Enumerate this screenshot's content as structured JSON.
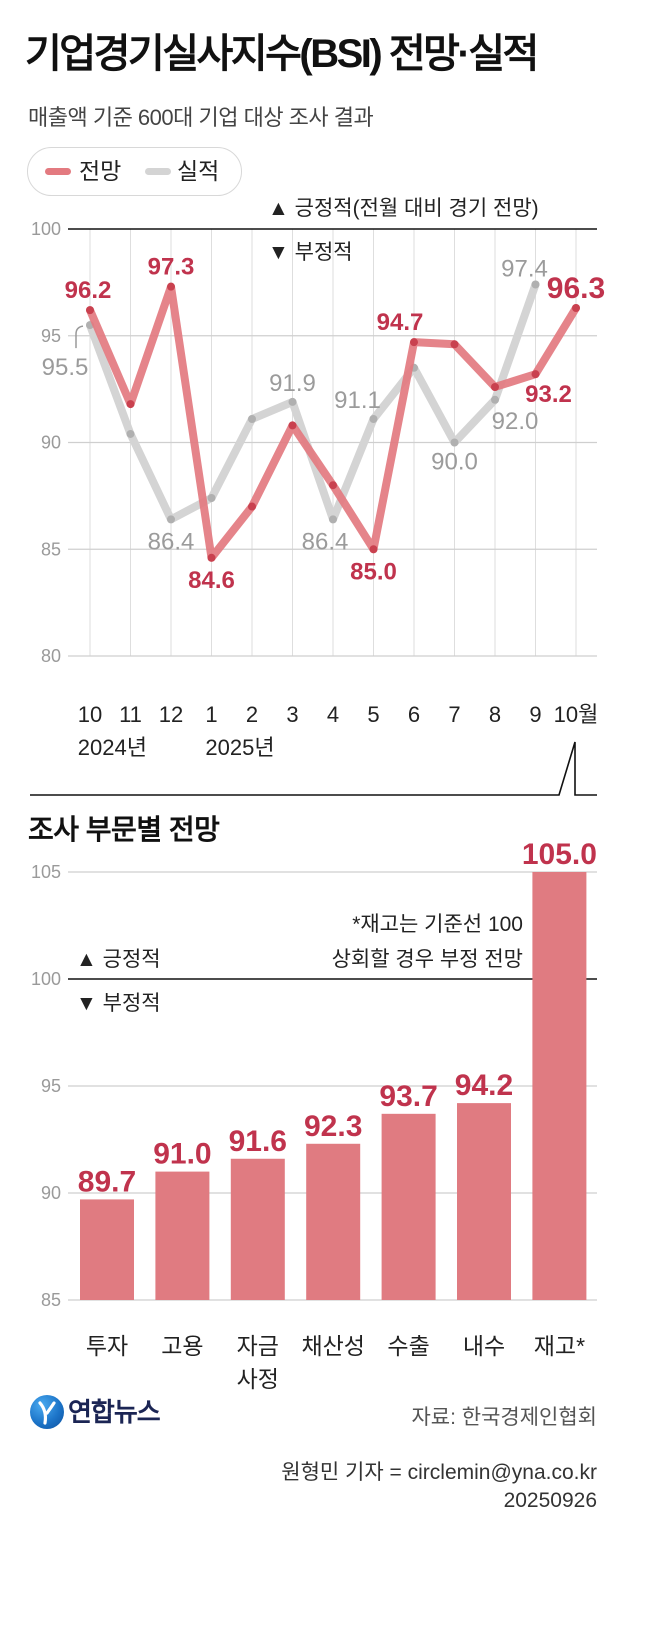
{
  "header": {
    "title": "기업경기실사지수(BSI) 전망·실적",
    "subtitle": "매출액 기준 600대 기업 대상 조사 결과"
  },
  "colors": {
    "forecast": "#e37a80",
    "forecast_point": "#c9414f",
    "actual": "#d4d4d4",
    "actual_point": "#b0b0b0",
    "label_red": "#c0334d",
    "label_gray": "#9b9b9b",
    "bar": "#e07b81",
    "baseline": "#111111",
    "grid": "#cfcfcf"
  },
  "chart_data": [
    {
      "type": "line",
      "x": [
        "10",
        "11",
        "12",
        "1",
        "2",
        "3",
        "4",
        "5",
        "6",
        "7",
        "8",
        "9",
        "10월"
      ],
      "x_groups": [
        {
          "label": "2024년",
          "start_index": 0
        },
        {
          "label": "2025년",
          "start_index": 3
        }
      ],
      "ylim": [
        80,
        100
      ],
      "yticks": [
        100,
        95,
        90,
        85,
        80
      ],
      "baseline": 100,
      "grid": true,
      "legend": "top-left",
      "annotations": {
        "positive": "▲ 긍정적(전월 대비 경기 전망)",
        "negative": "▼ 부정적"
      },
      "series": [
        {
          "name": "전망",
          "values": [
            96.2,
            91.8,
            97.3,
            84.6,
            87.0,
            90.8,
            88.0,
            85.0,
            94.7,
            94.6,
            92.6,
            93.2,
            96.3
          ],
          "labels": [
            "96.2",
            null,
            "97.3",
            "84.6",
            null,
            null,
            null,
            "85.0",
            "94.7",
            null,
            null,
            "93.2",
            "96.3"
          ]
        },
        {
          "name": "실적",
          "values": [
            95.5,
            90.4,
            86.4,
            87.4,
            91.1,
            91.9,
            86.4,
            91.1,
            93.5,
            90.0,
            92.0,
            97.4,
            null
          ],
          "labels": [
            "95.5",
            null,
            "86.4",
            null,
            null,
            "91.9",
            "86.4",
            "91.1",
            null,
            "90.0",
            "92.0",
            "97.4",
            null
          ]
        }
      ]
    },
    {
      "type": "bar",
      "title": "조사 부문별 전망",
      "categories": [
        "투자",
        "고용",
        "자금 사정",
        "채산성",
        "수출",
        "내수",
        "재고*"
      ],
      "values": [
        89.7,
        91.0,
        91.6,
        92.3,
        93.7,
        94.2,
        105.0
      ],
      "value_labels": [
        "89.7",
        "91.0",
        "91.6",
        "92.3",
        "93.7",
        "94.2",
        "105.0"
      ],
      "ylim": [
        85,
        105
      ],
      "yticks": [
        105,
        100,
        95,
        90,
        85
      ],
      "baseline": 100,
      "grid": true,
      "annotations": {
        "positive": "▲ 긍정적",
        "negative": "▼ 부정적"
      },
      "note": [
        "*재고는 기준선 100",
        "상회할 경우 부정 전망"
      ]
    }
  ],
  "footer": {
    "logo_text": "연합뉴스",
    "logo_icon": "yonhap-logo-icon",
    "source": "자료: 한국경제인협회",
    "byline": "원형민 기자 = circlemin@yna.co.kr",
    "date": "20250926"
  }
}
